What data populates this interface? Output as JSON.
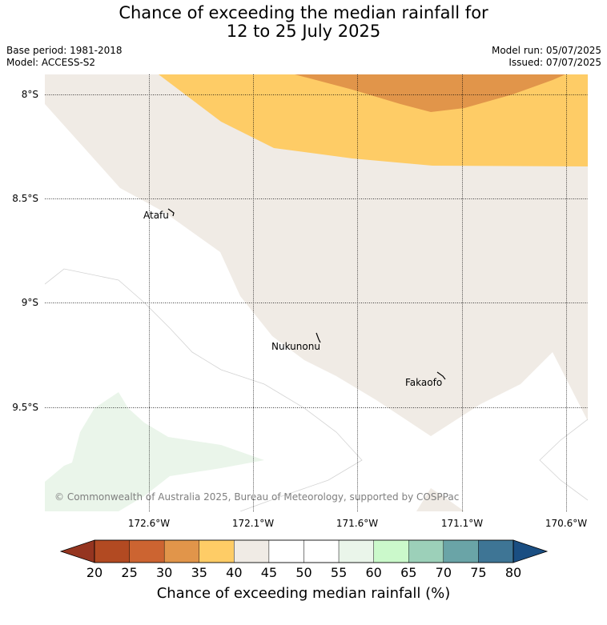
{
  "header": {
    "title_line1": "Chance of exceeding the median rainfall for",
    "title_line2": "12 to 25 July 2025",
    "base_period": "Base period: 1981-2018",
    "model": "Model: ACCESS-S2",
    "model_run": "Model run: 05/07/2025",
    "issued": "Issued: 07/07/2025"
  },
  "map": {
    "lat_labels": [
      "8°S",
      "8.5°S",
      "9°S",
      "9.5°S"
    ],
    "lon_labels": [
      "172.6°W",
      "172.1°W",
      "171.6°W",
      "171.1°W",
      "170.6°W"
    ],
    "places": [
      "Atafu",
      "Nukunonu",
      "Fakaofo"
    ],
    "copyright": "© Commonwealth of Australia 2025, Bureau of Meteorology, supported by COSPPac",
    "category_colors": {
      "20-25": "#b24a22",
      "25-30": "#cc6431",
      "30-35": "#e1954a",
      "35-40": "#fecc66",
      "40-45": "#f0ebe5",
      "45-55": "#ffffff",
      "55-60": "#eaf5ea",
      "60-65": "#cbf9cb",
      "65-70": "#9cd0b9",
      "70-75": "#6aa4a7",
      "75-80": "#3e7595"
    }
  },
  "colorbar": {
    "ticks": [
      "20",
      "25",
      "30",
      "35",
      "40",
      "45",
      "50",
      "55",
      "60",
      "65",
      "70",
      "75",
      "80"
    ],
    "label": "Chance of exceeding median rainfall (%)",
    "colors": [
      "#b24a22",
      "#cc6431",
      "#e1954a",
      "#fecc66",
      "#f0ebe5",
      "#ffffff",
      "#ffffff",
      "#eaf5ea",
      "#cbf9cb",
      "#9cd0b9",
      "#6aa4a7",
      "#3e7595"
    ],
    "under_color": "#953520",
    "over_color": "#1a4e82"
  }
}
